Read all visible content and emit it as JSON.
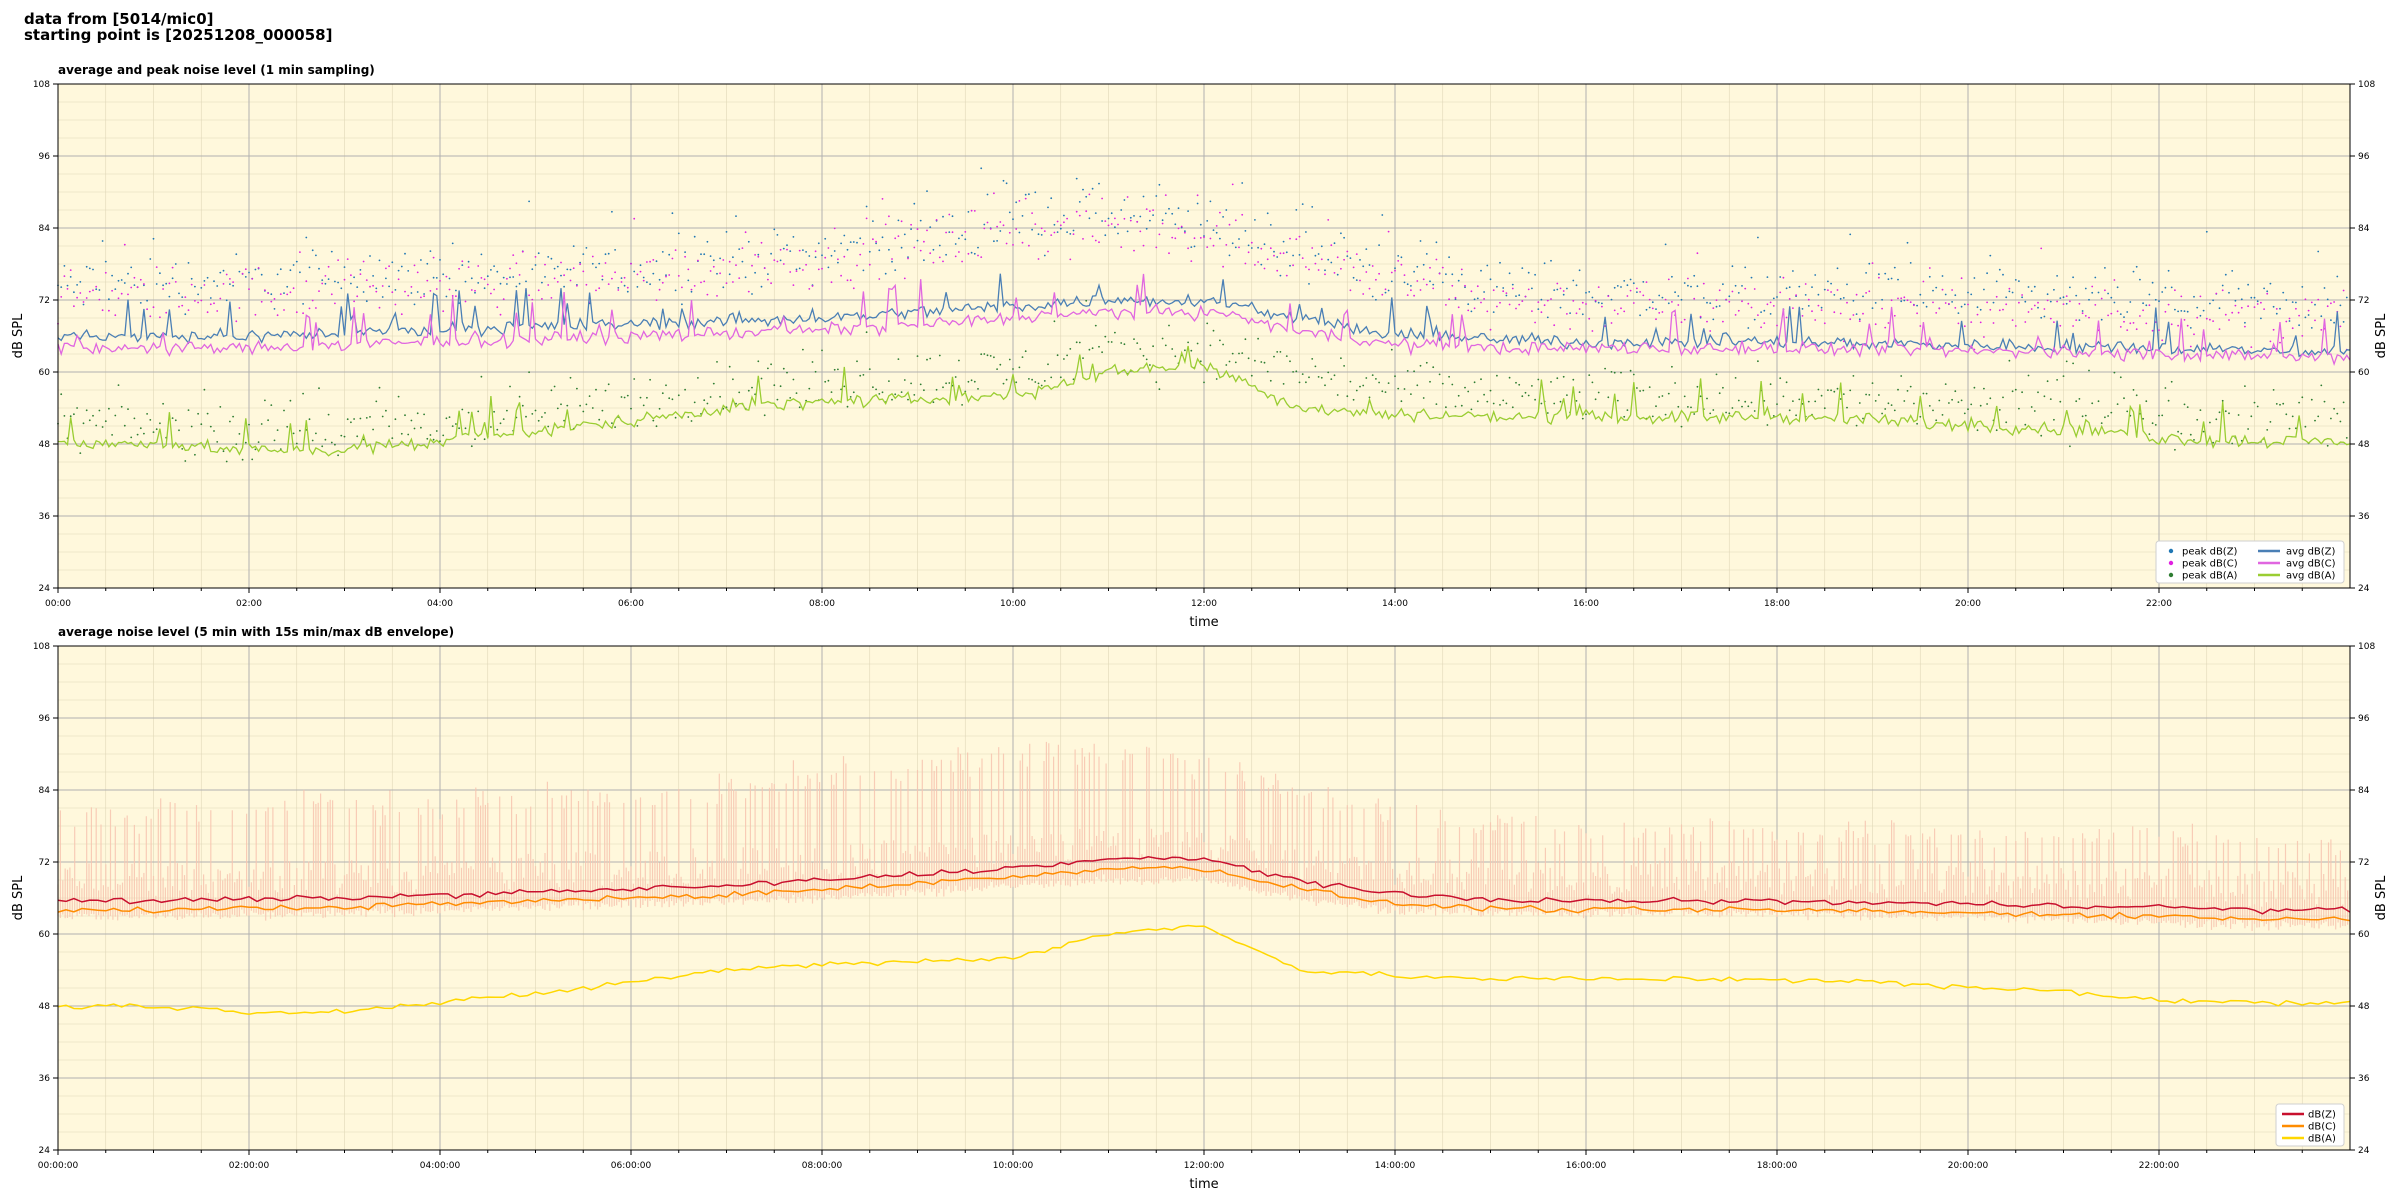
{
  "header": {
    "line1": "data from [5014/mic0]",
    "line2": "starting point is [20251208_000058]"
  },
  "colors": {
    "plot_bg": "#fff8dc",
    "grid_major": "#b0b0b0",
    "grid_minor": "#e0d8b8",
    "peak_z": "#1f77b4",
    "peak_c": "#e020e0",
    "peak_a": "#2e7d32",
    "avg_z": "#4a7fb5",
    "avg_c": "#e066e0",
    "avg_a": "#9acd32",
    "env": "#f7c5b0",
    "z": "#c8102e",
    "c": "#ff8c00",
    "a": "#ffd700"
  },
  "chart_data": [
    {
      "type": "line",
      "title": "average and peak noise level (1 min sampling)",
      "xlabel": "time",
      "ylabel": "dB SPL",
      "xlim_hours": [
        0,
        24
      ],
      "ylim": [
        24,
        108
      ],
      "yticks": [
        24,
        36,
        48,
        60,
        72,
        84,
        96,
        108
      ],
      "xtick_labels": [
        "00:00",
        "02:00",
        "04:00",
        "06:00",
        "08:00",
        "10:00",
        "12:00",
        "14:00",
        "16:00",
        "18:00",
        "20:00",
        "22:00"
      ],
      "grid": true,
      "legend_position": "bottom-right",
      "x_hours": [
        0,
        1,
        2,
        3,
        4,
        5,
        6,
        7,
        8,
        9,
        10,
        11,
        12,
        13,
        14,
        15,
        16,
        17,
        18,
        19,
        20,
        21,
        22,
        23,
        24
      ],
      "series": [
        {
          "name": "peak dB(Z)",
          "kind": "scatter",
          "color_key": "peak_z",
          "values": [
            74,
            75,
            75,
            76,
            76,
            76,
            77,
            78,
            80,
            82,
            85,
            86,
            84,
            80,
            76,
            74,
            73,
            73,
            73,
            73,
            72,
            72,
            72,
            71,
            71
          ]
        },
        {
          "name": "peak dB(C)",
          "kind": "scatter",
          "color_key": "peak_c",
          "values": [
            72,
            73,
            73,
            74,
            74,
            75,
            76,
            77,
            79,
            81,
            83,
            84,
            83,
            79,
            75,
            72,
            71,
            71,
            71,
            71,
            70,
            70,
            70,
            69,
            69
          ]
        },
        {
          "name": "peak dB(A)",
          "kind": "scatter",
          "color_key": "peak_a",
          "values": [
            52,
            51,
            50,
            50,
            51,
            53,
            55,
            57,
            58,
            59,
            60,
            63,
            64,
            60,
            57,
            56,
            56,
            56,
            56,
            55,
            54,
            54,
            53,
            52,
            52
          ]
        },
        {
          "name": "avg dB(Z)",
          "kind": "line",
          "color_key": "avg_z",
          "values": [
            66,
            66,
            66,
            66.5,
            67,
            67.5,
            68,
            68.5,
            69,
            70,
            71,
            72,
            72,
            69,
            66,
            65.5,
            65,
            65,
            65,
            64.8,
            64.5,
            64.3,
            64,
            63.5,
            63.5
          ]
        },
        {
          "name": "avg dB(C)",
          "kind": "line",
          "color_key": "avg_c",
          "values": [
            64,
            64,
            64,
            64.5,
            65,
            65.5,
            66,
            66.5,
            67,
            68,
            69,
            70,
            70,
            67,
            64.5,
            64,
            64,
            64,
            64,
            63.8,
            63.5,
            63.3,
            63,
            62.5,
            62.5
          ]
        },
        {
          "name": "avg dB(A)",
          "kind": "line",
          "color_key": "avg_a",
          "values": [
            48,
            48,
            47,
            47,
            48.5,
            50,
            52,
            54,
            55,
            55.5,
            56,
            60,
            61.5,
            54,
            53,
            52.5,
            52.5,
            52.5,
            52.5,
            52,
            51,
            50.5,
            49,
            48.5,
            48.5
          ]
        }
      ]
    },
    {
      "type": "line",
      "title": "average noise level (5 min with 15s min/max dB envelope)",
      "xlabel": "time",
      "ylabel": "dB SPL",
      "xlim_hours": [
        0,
        24
      ],
      "ylim": [
        24,
        108
      ],
      "yticks": [
        24,
        36,
        48,
        60,
        72,
        84,
        96,
        108
      ],
      "xtick_labels": [
        "00:00:00",
        "02:00:00",
        "04:00:00",
        "06:00:00",
        "08:00:00",
        "10:00:00",
        "12:00:00",
        "14:00:00",
        "16:00:00",
        "18:00:00",
        "20:00:00",
        "22:00:00"
      ],
      "grid": true,
      "legend_position": "bottom-right",
      "x_hours": [
        0,
        1,
        2,
        3,
        4,
        5,
        6,
        7,
        8,
        9,
        10,
        11,
        12,
        13,
        14,
        15,
        16,
        17,
        18,
        19,
        20,
        21,
        22,
        23,
        24
      ],
      "envelope": {
        "color_key": "env",
        "min": [
          63,
          63,
          63,
          63.5,
          64,
          64.5,
          65,
          65.5,
          66,
          67,
          68,
          69,
          69,
          66,
          64,
          63.5,
          63.5,
          63.5,
          63.5,
          63,
          63,
          62.5,
          62,
          61.5,
          61.5
        ],
        "max": [
          80,
          80,
          80,
          81,
          81,
          82,
          83,
          84,
          86,
          88,
          90,
          90,
          88,
          84,
          80,
          78,
          77,
          77,
          77,
          77,
          76,
          76,
          76,
          75,
          75
        ]
      },
      "series": [
        {
          "name": "dB(Z)",
          "color_key": "z",
          "values": [
            65.5,
            65.5,
            65.8,
            66,
            66.5,
            67,
            67.5,
            68,
            69,
            70,
            71,
            72.5,
            72.5,
            69,
            66.5,
            65.8,
            65.5,
            65.5,
            65.5,
            65.2,
            65,
            64.8,
            64.5,
            64,
            64
          ]
        },
        {
          "name": "dB(C)",
          "color_key": "c",
          "values": [
            64,
            64,
            64.3,
            64.5,
            65,
            65.5,
            66,
            66.5,
            67.5,
            68.5,
            69.5,
            71,
            71,
            67.5,
            65,
            64.3,
            64,
            64,
            64,
            63.8,
            63.5,
            63.3,
            63,
            62.5,
            62.5
          ]
        },
        {
          "name": "dB(A)",
          "color_key": "a",
          "values": [
            48,
            48,
            47,
            47.2,
            48.5,
            50,
            52,
            54,
            55,
            55.5,
            56,
            60,
            61.5,
            54,
            53,
            52.5,
            52.5,
            52.5,
            52.5,
            52,
            51,
            50.5,
            49,
            48.5,
            48.5
          ]
        }
      ]
    }
  ]
}
